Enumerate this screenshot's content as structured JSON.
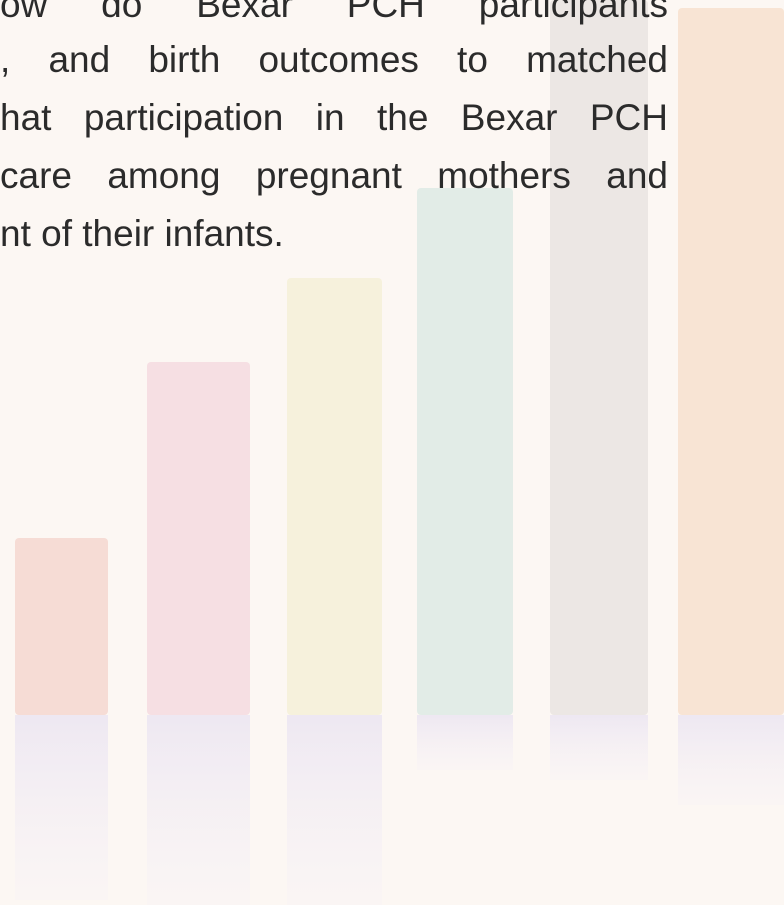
{
  "paragraph": {
    "lines": [
      "ow do Bexar PCH participants",
      ", and birth outcomes to matched",
      "hat participation in the Bexar PCH",
      "care among pregnant mothers and",
      "nt of their infants."
    ]
  }
}
